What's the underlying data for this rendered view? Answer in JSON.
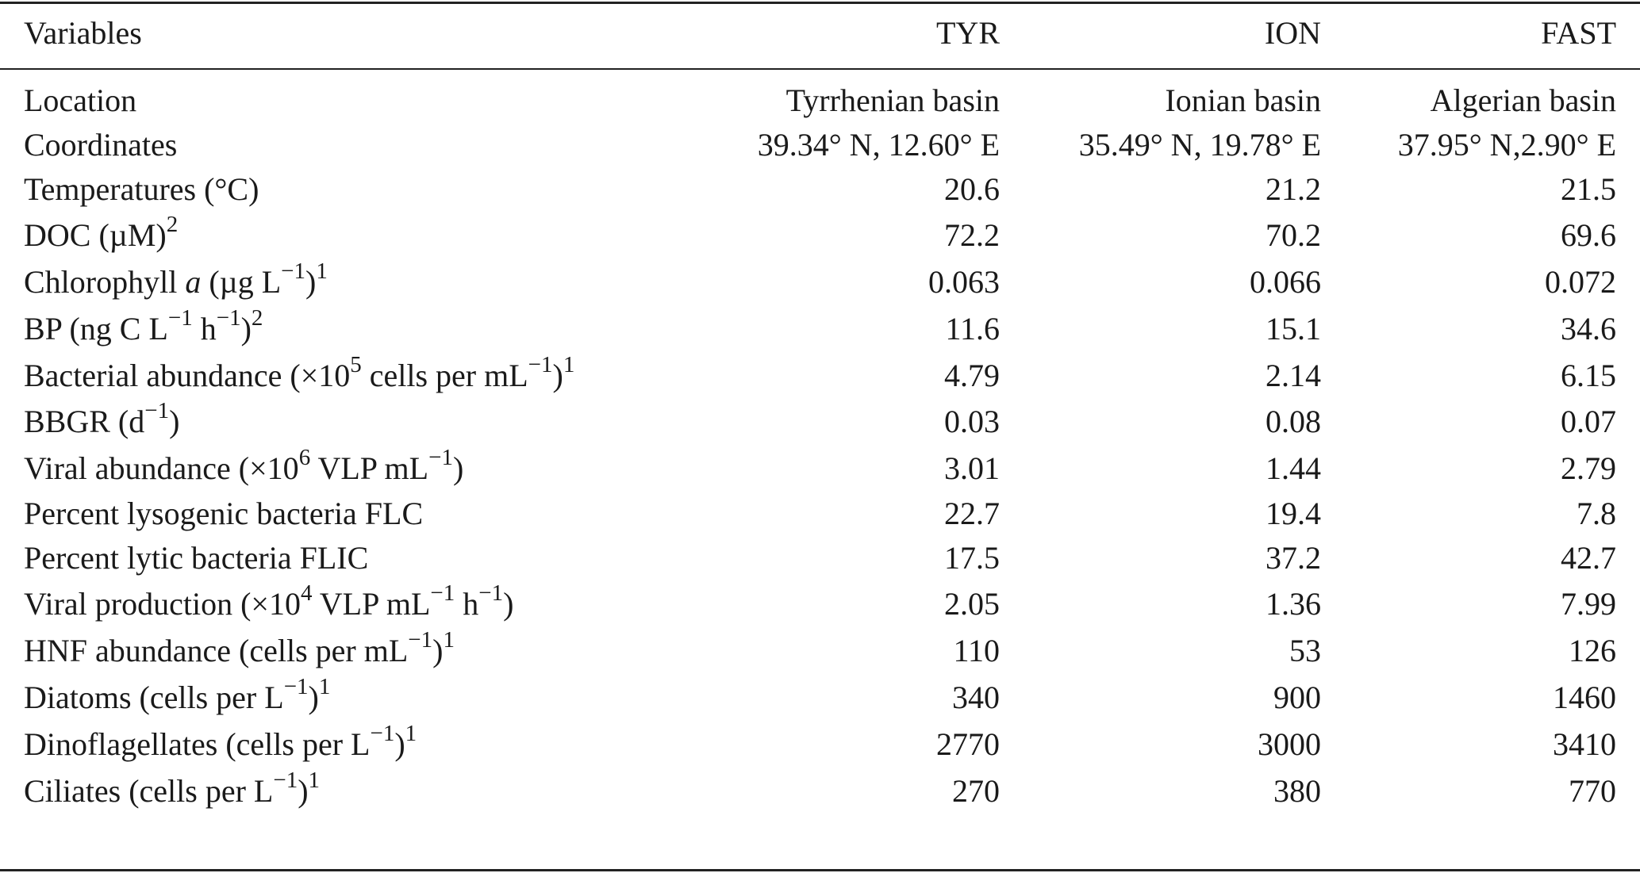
{
  "table": {
    "headers": [
      "Variables",
      "TYR",
      "ION",
      "FAST"
    ],
    "rows": [
      {
        "variable": "Location",
        "tyr": "Tyrrhenian basin",
        "ion": "Ionian basin",
        "fast": "Algerian basin"
      },
      {
        "variable": "Coordinates",
        "tyr": "39.34° N, 12.60° E",
        "ion": "35.49° N, 19.78° E",
        "fast": "37.95° N,2.90° E"
      },
      {
        "variable": "Temperatures (°C)",
        "tyr": "20.6",
        "ion": "21.2",
        "fast": "21.5"
      },
      {
        "variable": "DOC (µM)",
        "tyr": "72.2",
        "ion": "70.2",
        "fast": "69.6"
      },
      {
        "variable": "Chlorophyll a (µg L−1)",
        "tyr": "0.063",
        "ion": "0.066",
        "fast": "0.072"
      },
      {
        "variable": "BP (ng C L−1 h−1)",
        "tyr": "11.6",
        "ion": "15.1",
        "fast": "34.6"
      },
      {
        "variable": "Bacterial abundance (×105 cells per mL−1)",
        "tyr": "4.79",
        "ion": "2.14",
        "fast": "6.15"
      },
      {
        "variable": "BBGR (d−1)",
        "tyr": "0.03",
        "ion": "0.08",
        "fast": "0.07"
      },
      {
        "variable": "Viral abundance (×106 VLP mL−1)",
        "tyr": "3.01",
        "ion": "1.44",
        "fast": "2.79"
      },
      {
        "variable": "Percent lysogenic bacteria FLC",
        "tyr": "22.7",
        "ion": "19.4",
        "fast": "7.8"
      },
      {
        "variable": "Percent lytic bacteria FLIC",
        "tyr": "17.5",
        "ion": "37.2",
        "fast": "42.7"
      },
      {
        "variable": "Viral production (×104 VLP mL−1 h−1)",
        "tyr": "2.05",
        "ion": "1.36",
        "fast": "7.99"
      },
      {
        "variable": "HNF abundance (cells per mL−1)",
        "tyr": "110",
        "ion": "53",
        "fast": "126"
      },
      {
        "variable": "Diatoms (cells per L−1)",
        "tyr": "340",
        "ion": "900",
        "fast": "1460"
      },
      {
        "variable": "Dinoflagellates (cells per L−1)",
        "tyr": "2770",
        "ion": "3000",
        "fast": "3410"
      },
      {
        "variable": "Ciliates (cells per L−1)",
        "tyr": "270",
        "ion": "380",
        "fast": "770"
      }
    ],
    "label_parts": {
      "r3": {
        "pre": "DOC (µM)",
        "sup": "2"
      },
      "r4": {
        "pre": "Chlorophyll ",
        "it": "a",
        "mid": " (µg L",
        "sup1": "−1",
        "post": ")",
        "sup2": "1"
      },
      "r5": {
        "pre": "BP (ng C L",
        "sup1": "−1",
        "mid": " h",
        "sup2": "−1",
        "post": ")",
        "sup3": "2"
      },
      "r6": {
        "pre": "Bacterial abundance (×10",
        "sup1": "5",
        "mid": " cells per mL",
        "sup2": "−1",
        "post": ")",
        "sup3": "1"
      },
      "r7": {
        "pre": "BBGR (d",
        "sup1": "−1",
        "post": ")"
      },
      "r8": {
        "pre": "Viral abundance (×10",
        "sup1": "6",
        "mid": " VLP mL",
        "sup2": "−1",
        "post": ")"
      },
      "r11": {
        "pre": "Viral production (×10",
        "sup1": "4",
        "mid": " VLP mL",
        "sup2": "−1",
        "mid2": " h",
        "sup3": "−1",
        "post": ")"
      },
      "r12": {
        "pre": "HNF abundance (cells per mL",
        "sup1": "−1",
        "post": ")",
        "sup2": "1"
      },
      "r13": {
        "pre": "Diatoms (cells per L",
        "sup1": "−1",
        "post": ")",
        "sup2": "1"
      },
      "r14": {
        "pre": "Dinoflagellates (cells per L",
        "sup1": "−1",
        "post": ")",
        "sup2": "1"
      },
      "r15": {
        "pre": "Ciliates (cells per L",
        "sup1": "−1",
        "post": ")",
        "sup2": "1"
      }
    }
  }
}
